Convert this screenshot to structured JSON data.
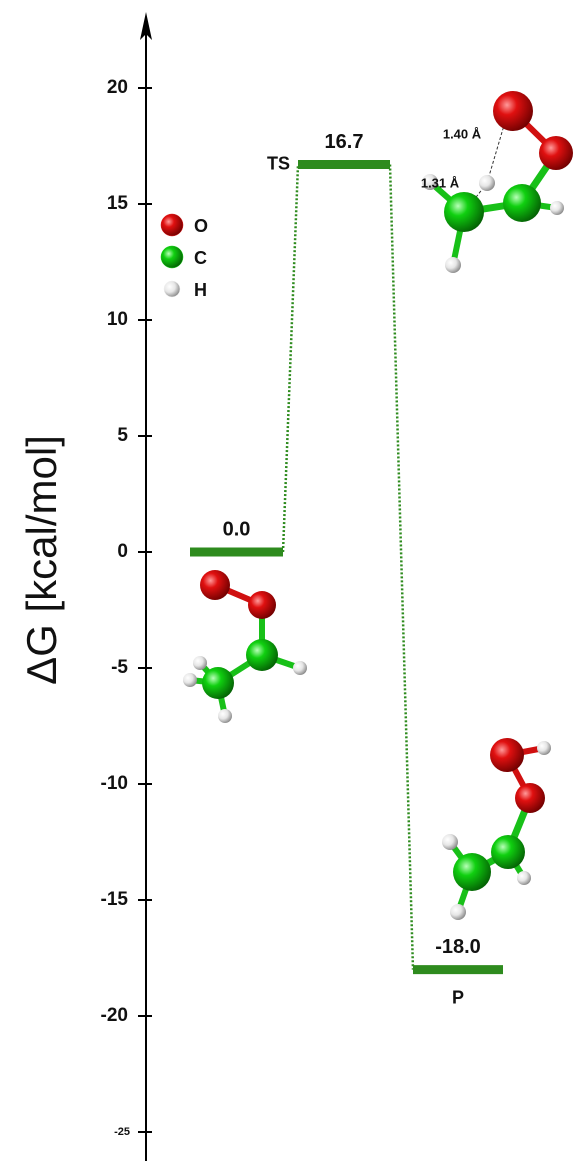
{
  "chart_data": {
    "type": "energy_levels",
    "y_label": "ΔG [kcal/mol]",
    "categories": [
      null,
      "TS",
      "P"
    ],
    "values": [
      0,
      16.7,
      -18.0
    ],
    "value_labels": [
      "0.0",
      "16.7",
      "-18.0"
    ],
    "color": "#2e8b1e",
    "ylim": [
      -26,
      23
    ],
    "yticks": [
      -25,
      -20,
      -15,
      -10,
      -5,
      0,
      5,
      10,
      15,
      20
    ],
    "legend": [
      {
        "name": "O",
        "color": "#e01010"
      },
      {
        "name": "C",
        "color": "#10d010"
      },
      {
        "name": "H",
        "color": "#f0f0f0"
      }
    ],
    "annotations": [
      "1.40 Å",
      "1.31 Å"
    ]
  }
}
